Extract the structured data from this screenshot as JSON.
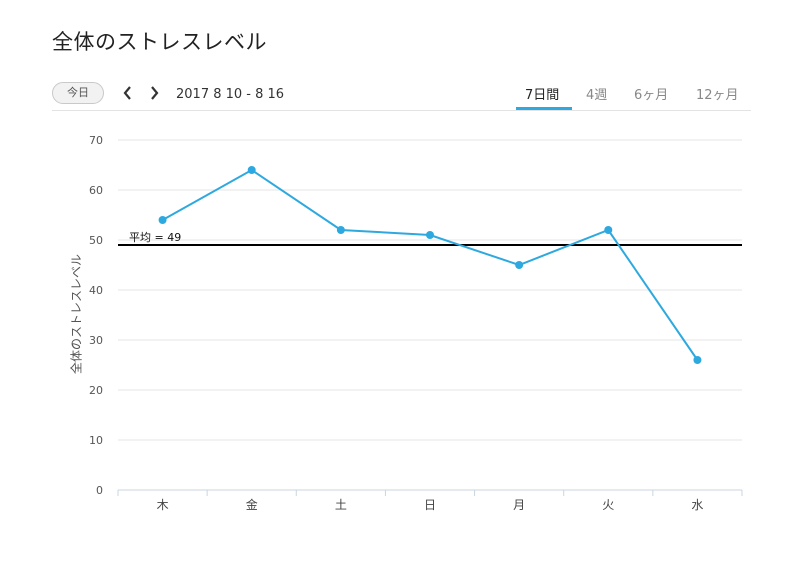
{
  "page": {
    "title": "全体のストレスレベル"
  },
  "toolbar": {
    "today_label": "今日",
    "prev_icon": "chevron-left-icon",
    "next_icon": "chevron-right-icon",
    "date_range": "2017 8 10 - 8 16",
    "tabs": [
      {
        "label": "7日間",
        "active": true
      },
      {
        "label": "4週",
        "active": false
      },
      {
        "label": "6ヶ月",
        "active": false
      },
      {
        "label": "12ヶ月",
        "active": false
      }
    ]
  },
  "colors": {
    "accent": "#2ea9df",
    "average_line": "#000000",
    "grid": "#e6e6e6"
  },
  "chart_data": {
    "type": "line",
    "title": "",
    "xlabel": "",
    "ylabel": "全体のストレスレベル",
    "categories": [
      "木",
      "金",
      "土",
      "日",
      "月",
      "火",
      "水"
    ],
    "series": [
      {
        "values": [
          54,
          64,
          52,
          51,
          45,
          52,
          26
        ]
      }
    ],
    "ylim": [
      0,
      70
    ],
    "yticks": [
      0,
      10,
      20,
      30,
      40,
      50,
      60,
      70
    ],
    "grid": true,
    "average": {
      "label": "平均 = 49",
      "value": 49
    }
  }
}
